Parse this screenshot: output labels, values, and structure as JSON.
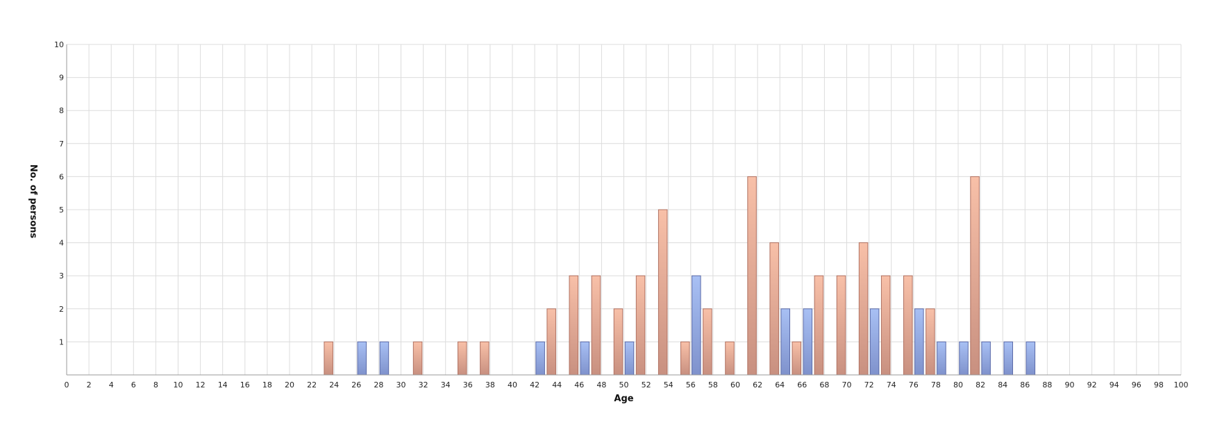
{
  "chart_data": {
    "type": "bar",
    "title": "",
    "xlabel": "Age",
    "ylabel": "No. of persons",
    "xlim": [
      0,
      100
    ],
    "ylim": [
      0,
      10
    ],
    "x_ticks": [
      0,
      2,
      4,
      6,
      8,
      10,
      12,
      14,
      16,
      18,
      20,
      22,
      24,
      26,
      28,
      30,
      32,
      34,
      36,
      38,
      40,
      42,
      44,
      46,
      48,
      50,
      52,
      54,
      56,
      58,
      60,
      62,
      64,
      66,
      68,
      70,
      72,
      74,
      76,
      78,
      80,
      82,
      84,
      86,
      88,
      90,
      92,
      94,
      96,
      98,
      100
    ],
    "y_ticks": [
      1,
      2,
      3,
      4,
      5,
      6,
      7,
      8,
      9,
      10
    ],
    "grid": true,
    "legend": "none",
    "series": [
      {
        "color": "#f4b49c",
        "edge_color": "#b07060",
        "points": [
          {
            "x": 23.5,
            "y": 1
          },
          {
            "x": 31.5,
            "y": 1
          },
          {
            "x": 35.5,
            "y": 1
          },
          {
            "x": 37.5,
            "y": 1
          },
          {
            "x": 43.5,
            "y": 2
          },
          {
            "x": 45.5,
            "y": 3
          },
          {
            "x": 47.5,
            "y": 3
          },
          {
            "x": 49.5,
            "y": 2
          },
          {
            "x": 51.5,
            "y": 3
          },
          {
            "x": 53.5,
            "y": 5
          },
          {
            "x": 55.5,
            "y": 1
          },
          {
            "x": 57.5,
            "y": 2
          },
          {
            "x": 59.5,
            "y": 1
          },
          {
            "x": 61.5,
            "y": 6
          },
          {
            "x": 63.5,
            "y": 4
          },
          {
            "x": 65.5,
            "y": 1
          },
          {
            "x": 67.5,
            "y": 3
          },
          {
            "x": 69.5,
            "y": 3
          },
          {
            "x": 71.5,
            "y": 4
          },
          {
            "x": 73.5,
            "y": 3
          },
          {
            "x": 75.5,
            "y": 3
          },
          {
            "x": 77.5,
            "y": 2
          },
          {
            "x": 81.5,
            "y": 6
          }
        ]
      },
      {
        "color": "#9db6ee",
        "edge_color": "#5a6aa8",
        "points": [
          {
            "x": 26.5,
            "y": 1
          },
          {
            "x": 28.5,
            "y": 1
          },
          {
            "x": 42.5,
            "y": 1
          },
          {
            "x": 46.5,
            "y": 1
          },
          {
            "x": 50.5,
            "y": 1
          },
          {
            "x": 56.5,
            "y": 3
          },
          {
            "x": 64.5,
            "y": 2
          },
          {
            "x": 66.5,
            "y": 2
          },
          {
            "x": 72.5,
            "y": 2
          },
          {
            "x": 76.5,
            "y": 2
          },
          {
            "x": 78.5,
            "y": 1
          },
          {
            "x": 80.5,
            "y": 1
          },
          {
            "x": 82.5,
            "y": 1
          },
          {
            "x": 84.5,
            "y": 1
          },
          {
            "x": 86.5,
            "y": 1
          }
        ]
      }
    ]
  }
}
